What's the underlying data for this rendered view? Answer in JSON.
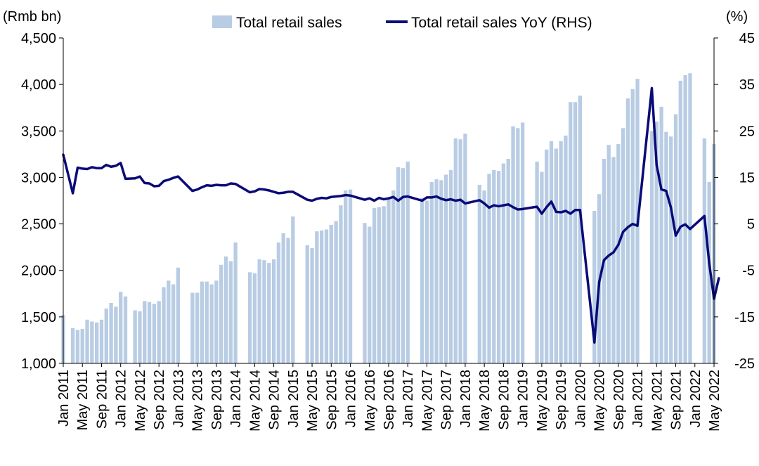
{
  "chart_data": {
    "type": "bar+line",
    "left_axis_label": "(Rmb bn)",
    "right_axis_label": "(%)",
    "left_ylim": [
      1000,
      4500
    ],
    "left_ticks": [
      "1,000",
      "1,500",
      "2,000",
      "2,500",
      "3,000",
      "3,500",
      "4,000",
      "4,500"
    ],
    "right_ylim": [
      -25,
      45
    ],
    "right_ticks": [
      "-25",
      "-15",
      "-5",
      "5",
      "15",
      "25",
      "35",
      "45"
    ],
    "negative_tick_color": "#ff0000",
    "bar_color": "#b8cce4",
    "line_color": "#0a0a78",
    "legend": {
      "bar_label": "Total retail sales",
      "line_label": "Total retail sales YoY (RHS)",
      "position": "top"
    },
    "x_tick_labels": [
      "Jan 2011",
      "May 2011",
      "Sep 2011",
      "Jan 2012",
      "May 2012",
      "Sep 2012",
      "Jan 2013",
      "May 2013",
      "Sep 2013",
      "Jan 2014",
      "May 2014",
      "Sep 2014",
      "Jan 2015",
      "May 2015",
      "Sep 2015",
      "Jan 2016",
      "May 2016",
      "Sep 2016",
      "Jan 2017",
      "May 2017",
      "Sep 2017",
      "Jan 2018",
      "May 2018",
      "Sep 2018",
      "Jan 2019",
      "May 2019",
      "Sep 2019",
      "Jan 2020",
      "May 2020",
      "Sep 2020",
      "Jan 2021",
      "May 2021",
      "Sep 2021",
      "Jan 2022",
      "May 2022"
    ],
    "series": [
      {
        "name": "Total retail sales",
        "kind": "bar",
        "axis": "left",
        "values": [
          1520,
          null,
          1380,
          1360,
          1370,
          1470,
          1450,
          1440,
          1470,
          1590,
          1650,
          1610,
          1770,
          1720,
          null,
          1570,
          1560,
          1670,
          1660,
          1640,
          1670,
          1820,
          1890,
          1850,
          2030,
          null,
          null,
          1760,
          1760,
          1880,
          1880,
          1850,
          1890,
          2060,
          2150,
          2100,
          2300,
          null,
          null,
          1980,
          1970,
          2120,
          2110,
          2080,
          2120,
          2300,
          2400,
          2350,
          2580,
          null,
          null,
          2270,
          2240,
          2420,
          2430,
          2440,
          2490,
          2530,
          2700,
          2860,
          2870,
          null,
          null,
          2510,
          2470,
          2670,
          2680,
          2690,
          2780,
          2860,
          3110,
          3100,
          3170,
          null,
          null,
          2780,
          2750,
          2950,
          2980,
          2970,
          3030,
          3080,
          3420,
          3410,
          3470,
          null,
          null,
          2920,
          2860,
          3040,
          3080,
          3070,
          3150,
          3200,
          3550,
          3530,
          3590,
          null,
          null,
          3170,
          3060,
          3300,
          3390,
          3310,
          3390,
          3450,
          3810,
          3810,
          3880,
          null,
          null,
          2640,
          2820,
          3200,
          3350,
          3220,
          3360,
          3530,
          3850,
          3950,
          4060,
          null,
          null,
          3500,
          3600,
          3760,
          3490,
          3440,
          3680,
          4040,
          4100,
          4120,
          null,
          null,
          3420,
          2950,
          3360
        ]
      },
      {
        "name": "Total retail sales YoY (RHS)",
        "kind": "line",
        "axis": "right",
        "values": [
          19.9,
          null,
          11.6,
          17.1,
          16.9,
          16.8,
          17.2,
          17.0,
          17.0,
          17.7,
          17.3,
          17.5,
          18.1,
          14.7,
          null,
          14.8,
          15.2,
          13.8,
          13.7,
          13.1,
          13.2,
          14.2,
          14.5,
          14.9,
          15.2,
          null,
          null,
          12.1,
          12.4,
          12.9,
          13.3,
          13.2,
          13.4,
          13.3,
          13.3,
          13.7,
          13.6,
          null,
          null,
          11.8,
          12.0,
          12.5,
          12.4,
          12.2,
          11.9,
          11.6,
          11.7,
          11.9,
          11.9,
          null,
          null,
          10.2,
          10.0,
          10.4,
          10.6,
          10.5,
          10.8,
          10.9,
          11.0,
          11.2,
          11.1,
          null,
          null,
          10.2,
          10.5,
          10.0,
          10.6,
          10.3,
          10.5,
          10.8,
          10.0,
          10.8,
          10.9,
          null,
          null,
          10.0,
          10.7,
          10.7,
          10.9,
          10.4,
          10.1,
          10.3,
          10.0,
          10.2,
          9.4,
          null,
          null,
          10.1,
          9.4,
          8.5,
          9.0,
          8.8,
          9.0,
          9.2,
          8.6,
          8.1,
          8.2,
          null,
          null,
          8.7,
          7.2,
          8.6,
          9.8,
          7.6,
          7.5,
          7.8,
          7.2,
          8.0,
          8.0,
          null,
          null,
          -20.5,
          -7.5,
          -2.8,
          -1.8,
          -1.1,
          0.5,
          3.3,
          4.3,
          5.0,
          4.6,
          null,
          null,
          34.2,
          17.7,
          12.4,
          12.1,
          8.5,
          2.5,
          4.4,
          4.9,
          3.9,
          null,
          null,
          6.7,
          -3.5,
          -11.1,
          -6.7
        ]
      }
    ]
  }
}
